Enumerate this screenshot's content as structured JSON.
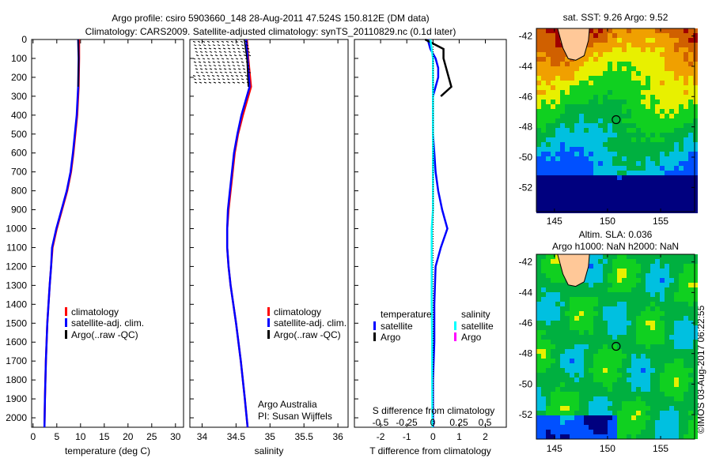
{
  "title": {
    "line1": "Argo profile: csiro 5903660_148 28-Aug-2011 47.524S 150.812E (DM data)",
    "line2": "Climatology: CARS2009. Satellite-adjusted climatology: synTS_20110829.nc (0.1d later)"
  },
  "watermark": "©IMOS 03-Aug-2017 06:22:55",
  "chart_data": [
    {
      "type": "line",
      "id": "temperature",
      "xlabel": "temperature (deg C)",
      "ylabel": "",
      "xlim": [
        -0.3,
        31.7
      ],
      "ylim": [
        2050,
        0
      ],
      "xticks": [
        0,
        5,
        10,
        15,
        20,
        25,
        30
      ],
      "yticks": [
        0,
        100,
        200,
        300,
        400,
        500,
        600,
        700,
        800,
        900,
        1000,
        1100,
        1200,
        1300,
        1400,
        1500,
        1600,
        1700,
        1800,
        1900,
        2000
      ],
      "legend": [
        "climatology",
        "satellite-adj. clim.",
        "Argo(..raw -QC)"
      ],
      "depth": [
        0,
        100,
        250,
        400,
        500,
        600,
        700,
        800,
        900,
        1000,
        1100,
        1200,
        1300,
        1500,
        1700,
        1900,
        2050
      ],
      "series": [
        {
          "name": "climatology",
          "color": "#ff0000",
          "values": [
            9.7,
            9.7,
            9.6,
            9.3,
            8.9,
            8.5,
            8.0,
            7.2,
            6.1,
            5.0,
            4.1,
            3.8,
            3.5,
            3.0,
            2.7,
            2.5,
            2.4
          ]
        },
        {
          "name": "satellite-adj. clim.",
          "color": "#0000ff",
          "values": [
            9.5,
            9.6,
            9.5,
            9.2,
            8.8,
            8.4,
            7.9,
            7.1,
            6.0,
            4.9,
            4.0,
            3.8,
            3.5,
            3.0,
            2.7,
            2.5,
            2.4
          ]
        },
        {
          "name": "Argo(..raw -QC)",
          "color": "#000000",
          "values": [
            9.5,
            9.6,
            9.5,
            null,
            null,
            null,
            null,
            null,
            null,
            null,
            null,
            null,
            null,
            null,
            null,
            null,
            null
          ]
        }
      ]
    },
    {
      "type": "line",
      "id": "salinity",
      "xlabel": "salinity",
      "xlim": [
        33.82,
        36.15
      ],
      "ylim": [
        2050,
        0
      ],
      "xticks": [
        34,
        34.5,
        35,
        35.5,
        36
      ],
      "legend": [
        "climatology",
        "satellite-adj. clim.",
        "Argo(..raw -QC)"
      ],
      "annotation": [
        "Argo Australia",
        "PI: Susan Wijffels"
      ],
      "depth": [
        0,
        100,
        250,
        400,
        500,
        600,
        700,
        800,
        900,
        1000,
        1100,
        1200,
        1300,
        1500,
        1700,
        1900,
        2050
      ],
      "series": [
        {
          "name": "climatology",
          "color": "#ff0000",
          "values": [
            34.66,
            34.68,
            34.72,
            34.6,
            34.53,
            34.48,
            34.45,
            34.42,
            34.39,
            34.37,
            34.37,
            34.39,
            34.42,
            34.5,
            34.57,
            34.63,
            34.67
          ]
        },
        {
          "name": "satellite-adj. clim.",
          "color": "#0000ff",
          "values": [
            34.65,
            34.67,
            34.7,
            34.58,
            34.52,
            34.47,
            34.44,
            34.41,
            34.38,
            34.37,
            34.37,
            34.39,
            34.42,
            34.5,
            34.57,
            34.63,
            34.67
          ]
        },
        {
          "name": "Argo(..raw -QC)",
          "color": "#000000",
          "values": [
            34.62,
            34.66,
            34.68,
            null,
            null,
            null,
            null,
            null,
            null,
            null,
            null,
            null,
            null,
            null,
            null,
            null,
            null
          ]
        }
      ]
    },
    {
      "type": "line",
      "id": "difference",
      "xlabel": "T difference from climatology",
      "x2label": "S difference from climatology",
      "xlim": [
        -3,
        2.8
      ],
      "ylim": [
        2050,
        0
      ],
      "xticks": [
        -2,
        -1,
        0,
        1,
        2
      ],
      "x2ticks": [
        "-0.5",
        "-0.25",
        "0",
        "0.25",
        "0.5"
      ],
      "legend_temperature": {
        "title": "temperature",
        "items": [
          "satellite",
          "Argo"
        ]
      },
      "legend_salinity": {
        "title": "salinity",
        "items": [
          "satellite",
          "Argo"
        ]
      },
      "depth": [
        0,
        50,
        100,
        150,
        200,
        250,
        300,
        400,
        500,
        600,
        700,
        800,
        900,
        1000,
        1100,
        1200,
        1400,
        1600,
        1800,
        2050
      ],
      "series": [
        {
          "name": "temperature satellite",
          "color": "#0000ff",
          "values": [
            -0.2,
            -0.1,
            0.1,
            0.2,
            0.2,
            0.1,
            0.0,
            0.0,
            0.0,
            0.05,
            0.1,
            0.2,
            0.35,
            0.55,
            0.3,
            0.1,
            0.05,
            0.05,
            0.0,
            0.0
          ]
        },
        {
          "name": "temperature Argo",
          "color": "#000000",
          "values": [
            -0.3,
            0.4,
            0.4,
            0.5,
            0.6,
            0.7,
            0.3,
            null,
            null,
            null,
            null,
            null,
            null,
            null,
            null,
            null,
            null,
            null,
            null,
            null
          ]
        },
        {
          "name": "salinity satellite",
          "color": "#00ffff",
          "values": [
            -0.1,
            -0.05,
            0.0,
            0.0,
            0.0,
            0.0,
            0.0,
            0.0,
            0.0,
            0.0,
            0.0,
            0.0,
            0.0,
            -0.05,
            -0.05,
            -0.05,
            -0.05,
            -0.03,
            -0.03,
            -0.02
          ]
        }
      ]
    }
  ],
  "maps": [
    {
      "title": "sat. SST: 9.26 Argo: 9.52",
      "field": "sst",
      "xticks": [
        145,
        150,
        155
      ],
      "yticks": [
        -42,
        -44,
        -46,
        -48,
        -50,
        -52
      ],
      "lon_range": [
        143.3,
        158.2
      ],
      "lat_range": [
        -41.5,
        -53.6
      ],
      "marker": [
        150.812,
        -47.524
      ]
    },
    {
      "title_line1": "Altim. SLA: 0.036",
      "title_line2": "Argo h1000: NaN h2000: NaN",
      "field": "sla",
      "xticks": [
        145,
        150,
        155
      ],
      "yticks": [
        -42,
        -44,
        -46,
        -48,
        -50,
        -52
      ],
      "lon_range": [
        143.3,
        158.2
      ],
      "lat_range": [
        -41.5,
        -53.6
      ],
      "marker": [
        150.812,
        -47.524
      ]
    }
  ]
}
